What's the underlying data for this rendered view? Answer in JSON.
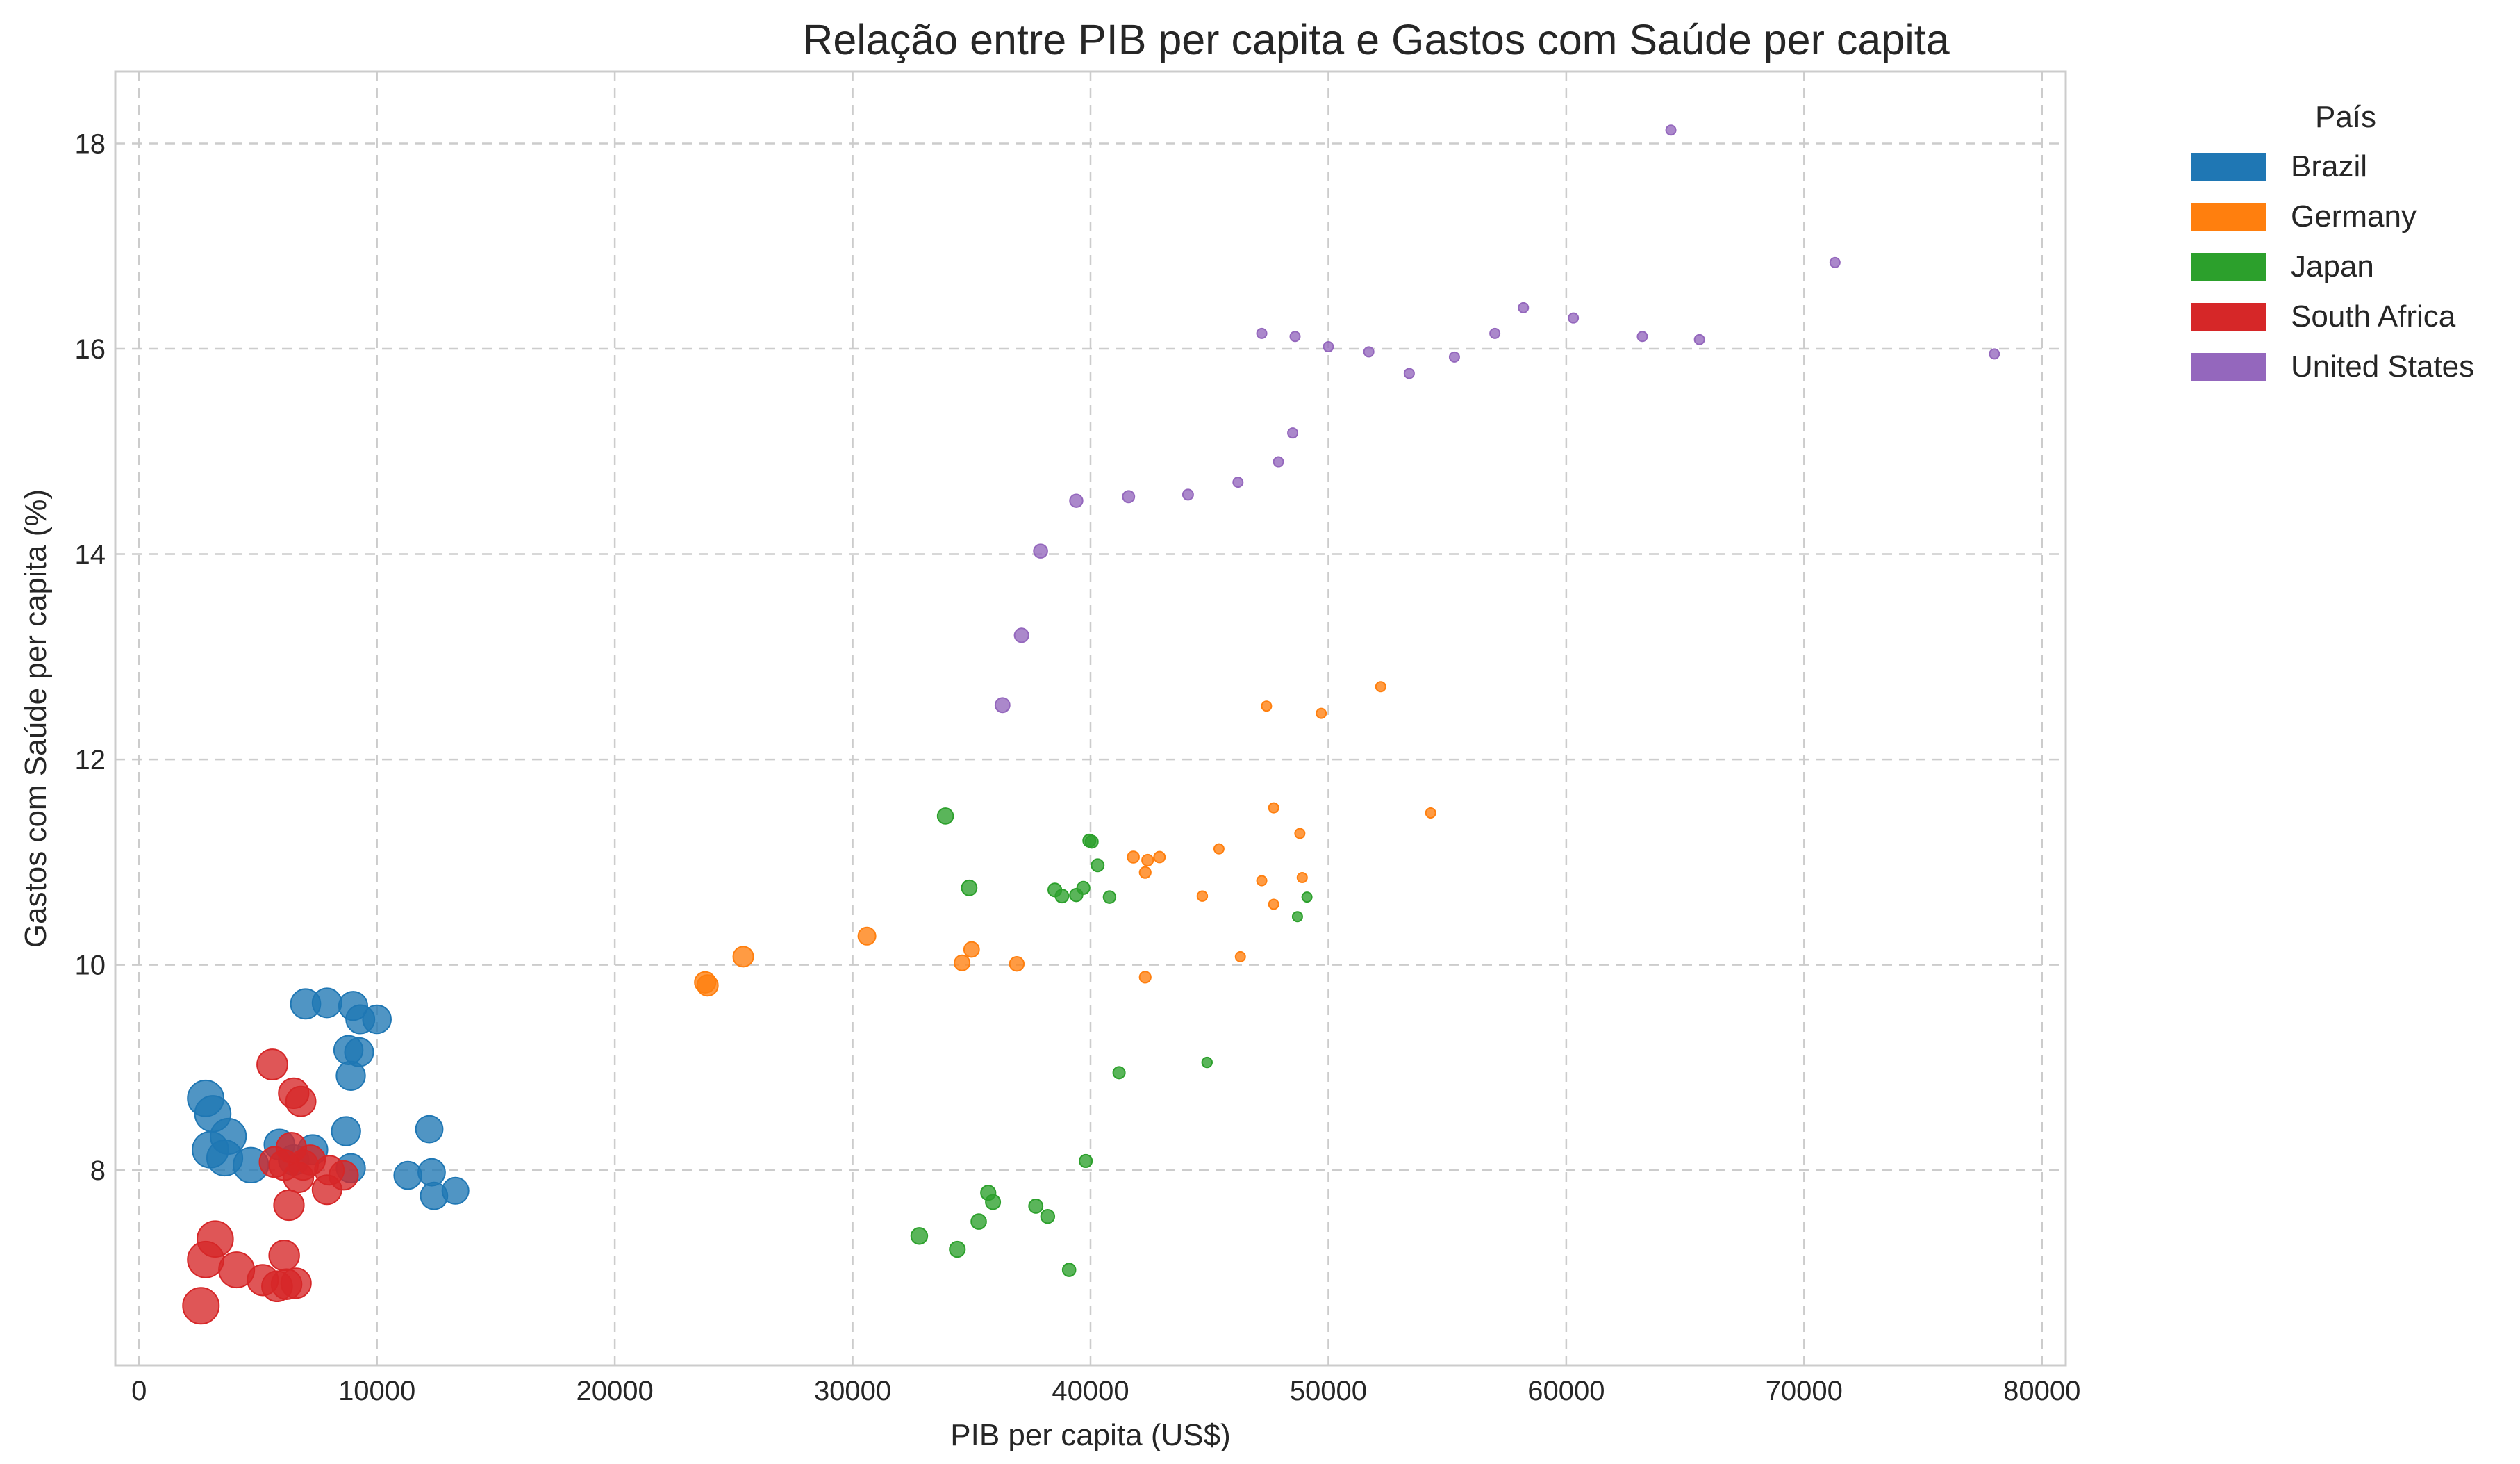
{
  "chart_data": {
    "type": "scatter",
    "title": "Relação entre PIB per capita e Gastos com Saúde per capita",
    "xlabel": "PIB per capita (US$)",
    "ylabel": "Gastos com Saúde per capita (%)",
    "xlim": [
      -1000,
      81000
    ],
    "ylim": [
      6.1,
      18.7
    ],
    "xticks": [
      0,
      10000,
      20000,
      30000,
      40000,
      50000,
      60000,
      70000,
      80000
    ],
    "yticks": [
      8,
      10,
      12,
      14,
      16,
      18
    ],
    "grid": true,
    "legend": {
      "title": "País",
      "placement": "outside-right"
    },
    "marker_size_note": "marker area varies inversely with GDP per capita",
    "series": [
      {
        "name": "Brazil",
        "color": "#1f77b4",
        "points": [
          {
            "x": 2800,
            "y": 8.7
          },
          {
            "x": 3100,
            "y": 8.55
          },
          {
            "x": 3000,
            "y": 8.2
          },
          {
            "x": 3600,
            "y": 8.12
          },
          {
            "x": 3750,
            "y": 8.33
          },
          {
            "x": 4700,
            "y": 8.05
          },
          {
            "x": 5900,
            "y": 8.25
          },
          {
            "x": 6500,
            "y": 8.1
          },
          {
            "x": 7300,
            "y": 8.2
          },
          {
            "x": 7000,
            "y": 9.62
          },
          {
            "x": 7900,
            "y": 9.63
          },
          {
            "x": 8700,
            "y": 8.38
          },
          {
            "x": 8800,
            "y": 9.17
          },
          {
            "x": 8900,
            "y": 8.92
          },
          {
            "x": 9000,
            "y": 9.6
          },
          {
            "x": 9300,
            "y": 9.47
          },
          {
            "x": 9250,
            "y": 9.15
          },
          {
            "x": 10000,
            "y": 9.47
          },
          {
            "x": 8900,
            "y": 8.02
          },
          {
            "x": 11300,
            "y": 7.95
          },
          {
            "x": 12200,
            "y": 8.4
          },
          {
            "x": 12300,
            "y": 7.98
          },
          {
            "x": 12400,
            "y": 7.75
          },
          {
            "x": 13300,
            "y": 7.8
          }
        ]
      },
      {
        "name": "Germany",
        "color": "#ff7f0e",
        "points": [
          {
            "x": 23800,
            "y": 9.83
          },
          {
            "x": 23900,
            "y": 9.8
          },
          {
            "x": 25400,
            "y": 10.08
          },
          {
            "x": 30600,
            "y": 10.28
          },
          {
            "x": 34600,
            "y": 10.02
          },
          {
            "x": 35000,
            "y": 10.15
          },
          {
            "x": 36900,
            "y": 10.01
          },
          {
            "x": 41800,
            "y": 11.05
          },
          {
            "x": 42300,
            "y": 10.9
          },
          {
            "x": 42400,
            "y": 11.02
          },
          {
            "x": 42900,
            "y": 11.05
          },
          {
            "x": 42300,
            "y": 9.88
          },
          {
            "x": 44700,
            "y": 10.67
          },
          {
            "x": 45400,
            "y": 11.13
          },
          {
            "x": 46300,
            "y": 10.08
          },
          {
            "x": 47200,
            "y": 10.82
          },
          {
            "x": 47400,
            "y": 12.52
          },
          {
            "x": 47700,
            "y": 11.53
          },
          {
            "x": 47700,
            "y": 10.59
          },
          {
            "x": 48800,
            "y": 11.28
          },
          {
            "x": 48900,
            "y": 10.85
          },
          {
            "x": 49700,
            "y": 12.45
          },
          {
            "x": 52200,
            "y": 12.71
          },
          {
            "x": 54300,
            "y": 11.48
          }
        ]
      },
      {
        "name": "Japan",
        "color": "#2ca02c",
        "points": [
          {
            "x": 32800,
            "y": 7.36
          },
          {
            "x": 33900,
            "y": 11.45
          },
          {
            "x": 34400,
            "y": 7.23
          },
          {
            "x": 34900,
            "y": 10.75
          },
          {
            "x": 35300,
            "y": 7.5
          },
          {
            "x": 35700,
            "y": 7.78
          },
          {
            "x": 35900,
            "y": 7.69
          },
          {
            "x": 37700,
            "y": 7.65
          },
          {
            "x": 38200,
            "y": 7.55
          },
          {
            "x": 38500,
            "y": 10.73
          },
          {
            "x": 38800,
            "y": 10.67
          },
          {
            "x": 39100,
            "y": 7.03
          },
          {
            "x": 39400,
            "y": 10.68
          },
          {
            "x": 39700,
            "y": 10.75
          },
          {
            "x": 39800,
            "y": 8.09
          },
          {
            "x": 39950,
            "y": 11.21
          },
          {
            "x": 40050,
            "y": 11.2
          },
          {
            "x": 40300,
            "y": 10.97
          },
          {
            "x": 40800,
            "y": 10.66
          },
          {
            "x": 41200,
            "y": 8.95
          },
          {
            "x": 44900,
            "y": 9.05
          },
          {
            "x": 48700,
            "y": 10.47
          },
          {
            "x": 49100,
            "y": 10.66
          }
        ]
      },
      {
        "name": "South Africa",
        "color": "#d62728",
        "points": [
          {
            "x": 2600,
            "y": 6.68
          },
          {
            "x": 2800,
            "y": 7.13
          },
          {
            "x": 3200,
            "y": 7.33
          },
          {
            "x": 4100,
            "y": 7.03
          },
          {
            "x": 5200,
            "y": 6.93
          },
          {
            "x": 5600,
            "y": 9.03
          },
          {
            "x": 5700,
            "y": 8.08
          },
          {
            "x": 5800,
            "y": 6.87
          },
          {
            "x": 6100,
            "y": 8.05
          },
          {
            "x": 6100,
            "y": 7.17
          },
          {
            "x": 6200,
            "y": 6.89
          },
          {
            "x": 6300,
            "y": 7.66
          },
          {
            "x": 6400,
            "y": 8.22
          },
          {
            "x": 6500,
            "y": 8.75
          },
          {
            "x": 6600,
            "y": 6.9
          },
          {
            "x": 6700,
            "y": 7.93
          },
          {
            "x": 6800,
            "y": 8.67
          },
          {
            "x": 6900,
            "y": 8.05
          },
          {
            "x": 7200,
            "y": 8.1
          },
          {
            "x": 7900,
            "y": 7.81
          },
          {
            "x": 8000,
            "y": 8.0
          },
          {
            "x": 8600,
            "y": 7.95
          }
        ]
      },
      {
        "name": "United States",
        "color": "#9467bd",
        "points": [
          {
            "x": 36300,
            "y": 12.53
          },
          {
            "x": 37100,
            "y": 13.21
          },
          {
            "x": 37900,
            "y": 14.03
          },
          {
            "x": 39400,
            "y": 14.52
          },
          {
            "x": 41600,
            "y": 14.56
          },
          {
            "x": 44100,
            "y": 14.58
          },
          {
            "x": 46200,
            "y": 14.7
          },
          {
            "x": 47200,
            "y": 16.15
          },
          {
            "x": 47900,
            "y": 14.9
          },
          {
            "x": 48500,
            "y": 15.18
          },
          {
            "x": 48600,
            "y": 16.12
          },
          {
            "x": 50000,
            "y": 16.02
          },
          {
            "x": 51700,
            "y": 15.97
          },
          {
            "x": 53400,
            "y": 15.76
          },
          {
            "x": 55300,
            "y": 15.92
          },
          {
            "x": 57000,
            "y": 16.15
          },
          {
            "x": 58200,
            "y": 16.4
          },
          {
            "x": 60300,
            "y": 16.3
          },
          {
            "x": 63200,
            "y": 16.12
          },
          {
            "x": 64400,
            "y": 18.13
          },
          {
            "x": 65600,
            "y": 16.09
          },
          {
            "x": 71300,
            "y": 16.84
          },
          {
            "x": 78000,
            "y": 15.95
          }
        ]
      }
    ]
  }
}
